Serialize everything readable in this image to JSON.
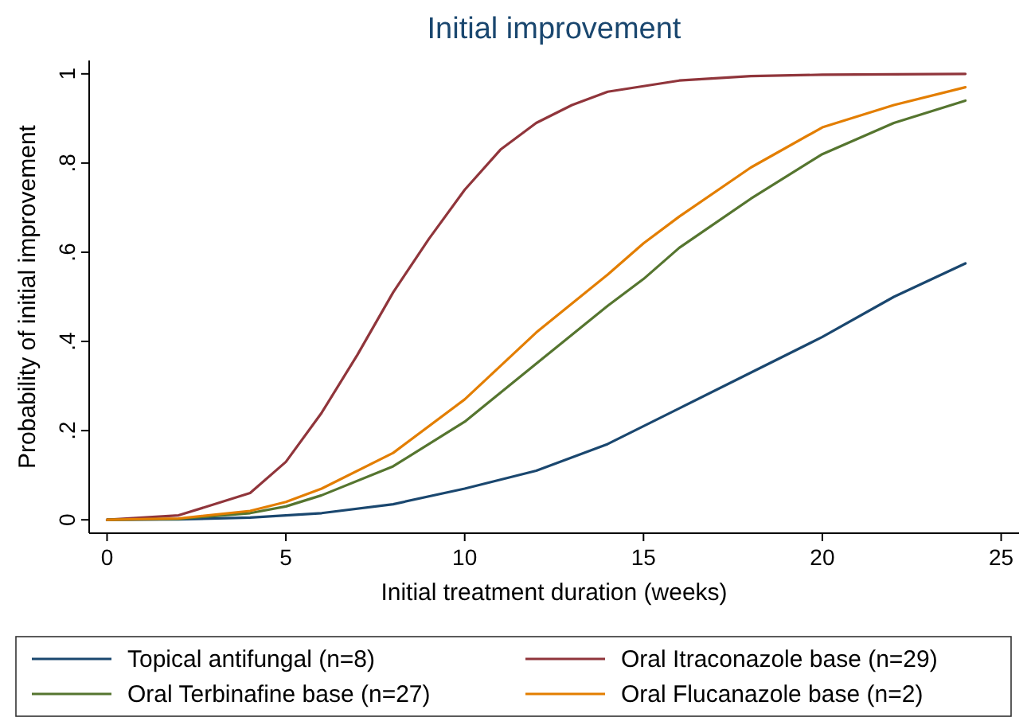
{
  "chart_data": {
    "type": "line",
    "title": "Initial improvement",
    "xlabel": "Initial treatment duration (weeks)",
    "ylabel": "Probability of initial improvement",
    "xlim": [
      -0.5,
      25.5
    ],
    "xticks": [
      0,
      5,
      10,
      15,
      20,
      25
    ],
    "ylim": [
      -0.03,
      1.03
    ],
    "yticks": [
      0,
      {
        "value": 0.2,
        "label": ".2"
      },
      {
        "value": 0.4,
        "label": ".4"
      },
      {
        "value": 0.6,
        "label": ".6"
      },
      {
        "value": 0.8,
        "label": ".8"
      },
      1
    ],
    "grid": false,
    "legend": "bottom",
    "marker": "none",
    "line_style": "solid",
    "series": [
      {
        "name": "Topical antifungal (n=8)",
        "color": "#1a476f",
        "x": [
          0,
          2,
          4,
          6,
          8,
          10,
          12,
          14,
          16,
          18,
          20,
          22,
          24
        ],
        "values": [
          0,
          0.001,
          0.005,
          0.015,
          0.035,
          0.07,
          0.11,
          0.17,
          0.25,
          0.33,
          0.41,
          0.5,
          0.575
        ]
      },
      {
        "name": "Oral Itraconazole base (n=29)",
        "color": "#90353b",
        "x": [
          0,
          2,
          4,
          5,
          6,
          7,
          8,
          9,
          10,
          11,
          12,
          13,
          14,
          16,
          18,
          20,
          24
        ],
        "values": [
          0,
          0.01,
          0.06,
          0.13,
          0.24,
          0.37,
          0.51,
          0.63,
          0.74,
          0.83,
          0.89,
          0.93,
          0.96,
          0.985,
          0.995,
          0.998,
          1
        ]
      },
      {
        "name": "Oral Terbinafine base (n=27)",
        "color": "#55752f",
        "x": [
          0,
          2,
          4,
          5,
          6,
          8,
          10,
          12,
          14,
          15,
          16,
          18,
          20,
          22,
          24
        ],
        "values": [
          0,
          0.002,
          0.015,
          0.03,
          0.055,
          0.12,
          0.22,
          0.35,
          0.48,
          0.54,
          0.61,
          0.72,
          0.82,
          0.89,
          0.94
        ]
      },
      {
        "name": "Oral Flucanazole base (n=2)",
        "color": "#e37e00",
        "x": [
          0,
          2,
          4,
          5,
          6,
          8,
          10,
          12,
          14,
          15,
          16,
          18,
          20,
          22,
          24
        ],
        "values": [
          0,
          0.003,
          0.02,
          0.04,
          0.07,
          0.15,
          0.27,
          0.42,
          0.55,
          0.62,
          0.68,
          0.79,
          0.88,
          0.93,
          0.97
        ]
      }
    ]
  }
}
